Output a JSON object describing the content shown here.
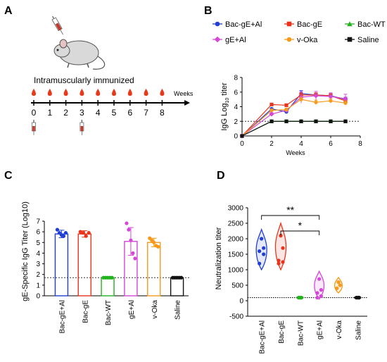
{
  "panels": {
    "A": {
      "letter": "A",
      "route_label": "Intramuscularly immunized",
      "weeks_label": "Weeks",
      "timeline_ticks": [
        "0",
        "1",
        "2",
        "3",
        "4",
        "5",
        "6",
        "7",
        "8"
      ],
      "bleed_weeks": [
        0,
        1,
        2,
        3,
        4,
        5,
        6,
        7,
        8
      ],
      "injection_weeks": [
        0,
        3
      ],
      "icons": [
        "mouse-icon",
        "syringe-icon",
        "blood-drop-icon"
      ],
      "colors": {
        "drop": "#e8391a",
        "syringe": "#c0392b"
      }
    },
    "B": {
      "letter": "B"
    },
    "C": {
      "letter": "C"
    },
    "D": {
      "letter": "D"
    }
  },
  "chart_data": [
    {
      "panel": "B",
      "type": "line",
      "title": "",
      "xlabel": "Weeks",
      "ylabel": "IgG Log10 titer",
      "ylabel_main": "IgG Log",
      "ylabel_sub": "10",
      "ylabel_tail": " titer",
      "xlim": [
        0,
        8
      ],
      "ylim": [
        0,
        8
      ],
      "xticks": [
        0,
        2,
        4,
        6,
        8
      ],
      "yticks": [
        0,
        2,
        4,
        6,
        8
      ],
      "reference_line": 2,
      "legend_position": "top",
      "x": [
        0,
        2,
        3,
        4,
        5,
        6,
        7
      ],
      "series": [
        {
          "name": "Bac-gE+Al",
          "color": "#1f3fd6",
          "marker": "circle",
          "values": [
            0,
            3.7,
            3.3,
            5.8,
            5.6,
            5.5,
            5.0
          ],
          "err": [
            0,
            0.15,
            0.2,
            0.4,
            0.3,
            0.3,
            0.3
          ]
        },
        {
          "name": "Bac-gE",
          "color": "#e8341c",
          "marker": "square",
          "values": [
            0,
            4.3,
            4.2,
            5.6,
            5.6,
            5.5,
            4.8
          ],
          "err": [
            0,
            0.1,
            0.2,
            0.3,
            0.3,
            0.3,
            0.3
          ]
        },
        {
          "name": "Bac-WT",
          "color": "#22b21e",
          "marker": "triangle",
          "values": [
            0,
            2,
            2,
            2,
            2,
            2,
            2
          ],
          "err": [
            0,
            0,
            0,
            0,
            0,
            0,
            0
          ]
        },
        {
          "name": "gE+Al",
          "color": "#d448d8",
          "marker": "diamond",
          "values": [
            0,
            3.0,
            3.5,
            5.3,
            5.5,
            5.4,
            5.1
          ],
          "err": [
            0,
            0.2,
            0.2,
            0.8,
            0.6,
            0.5,
            0.6
          ]
        },
        {
          "name": "v-Oka",
          "color": "#f59a1b",
          "marker": "circle",
          "values": [
            0,
            3.5,
            3.6,
            5.0,
            4.6,
            4.8,
            4.5
          ],
          "err": [
            0,
            0.2,
            0.2,
            0.3,
            0.3,
            0.3,
            0.3
          ]
        },
        {
          "name": "Saline",
          "color": "#111111",
          "marker": "square",
          "values": [
            0,
            2,
            2,
            2,
            2,
            2,
            2
          ],
          "err": [
            0,
            0,
            0,
            0,
            0,
            0,
            0
          ]
        }
      ]
    },
    {
      "panel": "C",
      "type": "bar",
      "title": "",
      "xlabel": "",
      "ylabel": "gE-Specific IgG Titer (Log10)",
      "ylim": [
        0,
        7
      ],
      "yticks": [
        0,
        1,
        2,
        3,
        4,
        5,
        6,
        7
      ],
      "reference_line": 1.7,
      "categories": [
        "Bac-gE+Al",
        "Bac-gE",
        "Bac-WT",
        "gE+Al",
        "v-Oka",
        "Saline"
      ],
      "colors": [
        "#1f3fd6",
        "#e8341c",
        "#22b21e",
        "#d448d8",
        "#f59a1b",
        "#111111"
      ],
      "values": [
        5.8,
        5.8,
        1.7,
        5.1,
        5.0,
        1.7
      ],
      "sd": [
        0.35,
        0.3,
        0,
        1.3,
        0.4,
        0
      ],
      "points": [
        [
          6.2,
          5.9,
          5.7,
          5.6,
          5.9
        ],
        [
          6.0,
          5.9,
          5.6,
          5.9
        ],
        [
          1.7,
          1.7,
          1.7,
          1.7,
          1.7
        ],
        [
          6.8,
          6.2,
          5.2,
          4.0,
          3.5
        ],
        [
          5.4,
          5.2,
          5.0,
          4.7,
          4.6
        ],
        [
          1.7,
          1.7,
          1.7,
          1.7,
          1.7
        ]
      ]
    },
    {
      "panel": "D",
      "type": "violin",
      "title": "",
      "xlabel": "",
      "ylabel": "Neutralization titer",
      "ylim": [
        -500,
        3000
      ],
      "yticks": [
        -500,
        0,
        500,
        1000,
        1500,
        2000,
        2500,
        3000
      ],
      "reference_line": 100,
      "categories": [
        "Bac-gE+Al",
        "Bac-gE",
        "Bac-WT",
        "gE+Al",
        "v-Oka",
        "Saline"
      ],
      "colors": [
        "#1f3fd6",
        "#e8341c",
        "#22b21e",
        "#d448d8",
        "#f59a1b",
        "#111111"
      ],
      "ranges": [
        [
          1000,
          2300
        ],
        [
          1000,
          2500
        ],
        [
          100,
          100
        ],
        [
          50,
          950
        ],
        [
          250,
          750
        ],
        [
          100,
          100
        ]
      ],
      "widths": [
        0.55,
        0.55,
        0.35,
        0.5,
        0.4,
        0.35
      ],
      "points": [
        [
          2000,
          1700,
          1600,
          1500,
          1200
        ],
        [
          2100,
          1700,
          1300,
          1250,
          1200
        ],
        [
          100,
          100,
          100,
          100
        ],
        [
          700,
          350,
          250,
          150,
          100
        ],
        [
          600,
          500,
          400
        ],
        [
          100,
          100,
          100,
          100
        ]
      ],
      "significance": [
        {
          "from": 0,
          "to": 3,
          "label": "**",
          "y": 2750
        },
        {
          "from": 1,
          "to": 3,
          "label": "*",
          "y": 2250
        }
      ]
    }
  ]
}
